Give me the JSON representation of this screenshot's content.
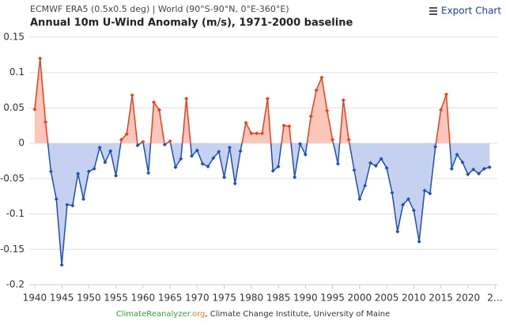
{
  "header": {
    "source": "ECMWF ERA5 (0.5x0.5 deg) | World (90°S-90°N, 0°E-360°E)",
    "export": "Export Chart"
  },
  "footer": {
    "site": "ClimateReanalyzer",
    "tld": ".org",
    "rest": ", Climate Change Institute, University of Maine"
  },
  "chart_data": {
    "type": "line",
    "title": "Annual 10m U-Wind Anomaly (m/s), 1971-2000 baseline",
    "x": [
      1940,
      1941,
      1942,
      1943,
      1944,
      1945,
      1946,
      1947,
      1948,
      1949,
      1950,
      1951,
      1952,
      1953,
      1954,
      1955,
      1956,
      1957,
      1958,
      1959,
      1960,
      1961,
      1962,
      1963,
      1964,
      1965,
      1966,
      1967,
      1968,
      1969,
      1970,
      1971,
      1972,
      1973,
      1974,
      1975,
      1976,
      1977,
      1978,
      1979,
      1980,
      1981,
      1982,
      1983,
      1984,
      1985,
      1986,
      1987,
      1988,
      1989,
      1990,
      1991,
      1992,
      1993,
      1994,
      1995,
      1996,
      1997,
      1998,
      1999,
      2000,
      2001,
      2002,
      2003,
      2004,
      2005,
      2006,
      2007,
      2008,
      2009,
      2010,
      2011,
      2012,
      2013,
      2014,
      2015,
      2016,
      2017,
      2018,
      2019,
      2020,
      2021,
      2022,
      2023,
      2024
    ],
    "values": [
      0.048,
      0.12,
      0.03,
      -0.04,
      -0.079,
      -0.172,
      -0.087,
      -0.088,
      -0.043,
      -0.079,
      -0.04,
      -0.036,
      -0.006,
      -0.027,
      -0.011,
      -0.046,
      0.005,
      0.013,
      0.068,
      -0.003,
      0.002,
      -0.042,
      0.058,
      0.047,
      -0.002,
      0.003,
      -0.034,
      -0.022,
      0.063,
      -0.018,
      -0.01,
      -0.029,
      -0.033,
      -0.021,
      -0.012,
      -0.048,
      -0.006,
      -0.057,
      -0.011,
      0.029,
      0.014,
      0.014,
      0.014,
      0.063,
      -0.039,
      -0.033,
      0.025,
      0.024,
      -0.048,
      -0.001,
      -0.016,
      0.038,
      0.075,
      0.093,
      0.046,
      0.005,
      -0.029,
      0.061,
      0.005,
      -0.038,
      -0.079,
      -0.06,
      -0.028,
      -0.032,
      -0.022,
      -0.035,
      -0.07,
      -0.125,
      -0.087,
      -0.079,
      -0.095,
      -0.139,
      -0.067,
      -0.071,
      -0.005,
      0.047,
      0.069,
      -0.036,
      -0.016,
      -0.027,
      -0.044,
      -0.037,
      -0.043,
      -0.036,
      -0.034
    ],
    "color_positive": "#e8401c",
    "color_negative": "#1f4fb8",
    "fill_positive": "#fcc6bb",
    "fill_negative": "#c6d1ef",
    "xlim": [
      1939,
      2025.5
    ],
    "ylim": [
      -0.2,
      0.15
    ],
    "xticks": [
      1940,
      1945,
      1950,
      1955,
      1960,
      1965,
      1970,
      1975,
      1980,
      1985,
      1990,
      1995,
      2000,
      2005,
      2010,
      2015,
      2020,
      {
        "value": 2025,
        "label": "2…"
      }
    ],
    "yticks": [
      -0.2,
      -0.15,
      -0.1,
      -0.05,
      0,
      0.05,
      0.1,
      0.15
    ],
    "grid": true
  }
}
